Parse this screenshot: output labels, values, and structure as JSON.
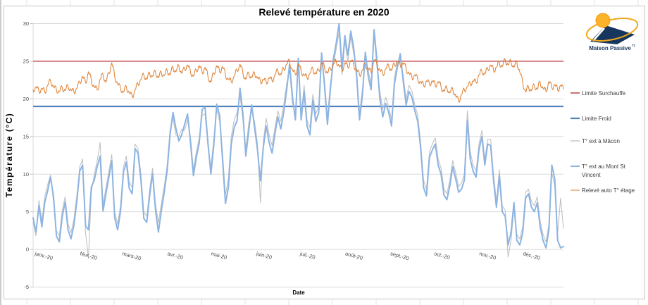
{
  "chart_data": {
    "type": "line",
    "title": "Relevé température en 2020",
    "xlabel": "Date",
    "ylabel": "Température  (°C)",
    "ylim": [
      -5,
      30
    ],
    "yticks": [
      30,
      25,
      20,
      15,
      10,
      5,
      0,
      -5
    ],
    "grid": "horizontal gridlines on, light gray",
    "legend_position": "right",
    "x_unit": "day of year 2020, daily records",
    "x_domain_days": [
      1,
      365
    ],
    "x_categories": [
      "janv.-20",
      "févr.-20",
      "mars-20",
      "avr.-20",
      "mai-20",
      "juin-20",
      "juil.-20",
      "août-20",
      "sept.-20",
      "oct.-20",
      "nov.-20",
      "déc.-20"
    ],
    "month_start_days": [
      1,
      32,
      61,
      92,
      122,
      153,
      183,
      214,
      245,
      275,
      306,
      336
    ],
    "reference_lines": [
      {
        "label": "Limite Surchauffe",
        "value": 25,
        "color": "#C0504D",
        "stroke_width": 1.4
      },
      {
        "label": "Limite Froid",
        "value": 19,
        "color": "#4F81BD",
        "stroke_width": 2.2
      }
    ],
    "series_sampling": {
      "start_day": 1,
      "step_days": 2
    },
    "series": [
      {
        "label": "T° ext à Mâcon",
        "color": "#BDBDBD",
        "stroke_width": 1,
        "values": [
          3.6,
          1.8,
          6.5,
          3.8,
          7.0,
          8.6,
          9.9,
          6.2,
          2.5,
          1.8,
          5.2,
          7.0,
          3.4,
          2.2,
          4.0,
          7.2,
          11.0,
          12.0,
          2.2,
          -1.2,
          7.6,
          10.0,
          11.8,
          14.2,
          6.0,
          8.2,
          10.4,
          12.6,
          5.0,
          3.4,
          5.8,
          11.0,
          12.4,
          9.0,
          8.2,
          14.0,
          13.4,
          10.0,
          5.0,
          4.4,
          8.0,
          10.8,
          6.0,
          3.6,
          6.0,
          8.4,
          11.2,
          16.0,
          17.4,
          15.2,
          15.0,
          16.0,
          15.8,
          17.2,
          15.0,
          10.6,
          13.0,
          14.8,
          17.8,
          18.0,
          13.6,
          11.0,
          14.6,
          18.6,
          17.0,
          13.0,
          7.2,
          9.4,
          15.0,
          17.2,
          18.2,
          20.4,
          17.2,
          13.4,
          16.8,
          18.4,
          17.0,
          14.0,
          6.2,
          14.4,
          17.4,
          15.2,
          13.8,
          16.2,
          18.4,
          17.0,
          19.2,
          22.0,
          23.8,
          19.4,
          18.0,
          24.6,
          18.0,
          21.8,
          17.2,
          16.2,
          20.6,
          18.0,
          19.0,
          25.2,
          22.6,
          17.6,
          22.0,
          24.4,
          26.6,
          28.8,
          23.2,
          27.6,
          25.0,
          28.2,
          26.0,
          24.0,
          18.2,
          21.2,
          25.4,
          23.8,
          22.0,
          28.4,
          24.2,
          21.0,
          18.6,
          20.2,
          19.0,
          17.2,
          22.8,
          25.0,
          25.2,
          23.2,
          20.0,
          21.8,
          21.0,
          19.2,
          17.8,
          14.2,
          9.2,
          8.0,
          13.0,
          14.0,
          14.8,
          12.0,
          10.8,
          8.0,
          7.4,
          9.2,
          11.8,
          10.2,
          8.4,
          8.8,
          10.0,
          18.4,
          13.0,
          11.2,
          10.4,
          14.0,
          15.8,
          12.0,
          14.6,
          14.6,
          10.0,
          6.4,
          10.6,
          5.8,
          5.2,
          -1.0,
          1.2,
          5.4,
          2.0,
          1.4,
          3.0,
          7.6,
          8.0,
          6.4,
          5.8,
          7.0,
          3.8,
          2.0,
          1.0,
          3.4,
          10.2,
          8.4,
          2.0,
          6.8,
          2.8
        ]
      },
      {
        "label": "T° ext au Mont St Vincent",
        "color": "#8DB4E2",
        "stroke_width": 2,
        "values": [
          4.2,
          2.3,
          5.8,
          3.0,
          6.2,
          7.8,
          9.6,
          7.0,
          1.8,
          1.0,
          4.4,
          6.3,
          2.6,
          1.4,
          3.2,
          6.4,
          10.4,
          11.2,
          3.1,
          2.6,
          8.3,
          9.2,
          11.0,
          12.4,
          5.1,
          7.4,
          9.6,
          11.8,
          4.2,
          2.6,
          5.0,
          10.3,
          11.6,
          8.1,
          7.4,
          13.4,
          12.8,
          9.2,
          4.1,
          3.6,
          7.2,
          10.1,
          5.2,
          2.3,
          5.1,
          7.6,
          10.4,
          15.3,
          18.2,
          16.1,
          14.4,
          15.2,
          16.6,
          18.0,
          14.3,
          9.8,
          12.2,
          14.1,
          18.6,
          18.9,
          14.2,
          10.0,
          13.8,
          19.3,
          17.8,
          12.0,
          6.1,
          8.2,
          14.0,
          16.2,
          17.1,
          21.4,
          18.0,
          12.4,
          15.8,
          19.2,
          16.2,
          13.2,
          9.1,
          13.6,
          16.4,
          14.2,
          12.8,
          15.4,
          17.6,
          16.0,
          18.2,
          21.2,
          24.6,
          20.3,
          17.2,
          25.4,
          17.2,
          21.0,
          16.4,
          15.2,
          19.8,
          17.0,
          18.2,
          26.1,
          21.8,
          16.6,
          21.2,
          25.2,
          27.4,
          30.0,
          24.0,
          28.4,
          25.8,
          29.0,
          26.8,
          23.2,
          17.2,
          20.4,
          26.2,
          23.0,
          21.2,
          29.2,
          25.0,
          20.0,
          17.6,
          19.4,
          18.2,
          16.4,
          22.0,
          24.2,
          26.0,
          22.4,
          19.2,
          21.0,
          20.2,
          18.4,
          17.0,
          13.4,
          8.2,
          7.1,
          12.2,
          13.2,
          14.0,
          11.2,
          10.0,
          7.2,
          6.6,
          8.4,
          11.0,
          9.4,
          7.6,
          8.0,
          9.2,
          17.2,
          12.0,
          10.4,
          9.6,
          13.2,
          15.0,
          11.2,
          14.0,
          13.8,
          9.2,
          5.6,
          9.8,
          5.0,
          4.4,
          0.6,
          2.2,
          6.2,
          1.2,
          0.6,
          2.2,
          6.8,
          7.4,
          5.6,
          5.0,
          6.2,
          3.0,
          1.2,
          0.2,
          2.6,
          11.2,
          9.4,
          1.2,
          0.2,
          0.4
        ]
      },
      {
        "label": "Relevé auto T° étage",
        "color": "#DD7E2F",
        "stroke_width": 1,
        "daily_oscillation_amplitude": 0.35,
        "values": [
          21.2,
          21.6,
          21.0,
          21.4,
          20.9,
          21.8,
          22.4,
          21.6,
          21.2,
          21.0,
          21.5,
          21.1,
          21.7,
          21.2,
          20.9,
          21.4,
          22.2,
          23.0,
          22.1,
          23.6,
          22.4,
          21.6,
          21.2,
          22.6,
          23.2,
          22.2,
          23.4,
          24.8,
          23.0,
          22.0,
          21.4,
          20.9,
          21.6,
          20.8,
          20.3,
          21.2,
          22.0,
          22.6,
          23.2,
          22.6,
          23.4,
          23.0,
          23.6,
          22.8,
          23.5,
          23.1,
          23.8,
          23.2,
          24.2,
          23.6,
          24.4,
          23.4,
          24.0,
          24.5,
          23.6,
          23.0,
          23.8,
          24.4,
          23.5,
          24.2,
          23.0,
          22.2,
          23.4,
          24.4,
          23.6,
          24.3,
          23.2,
          22.6,
          22.3,
          23.0,
          23.8,
          24.6,
          23.4,
          22.6,
          23.4,
          22.8,
          23.4,
          22.8,
          22.3,
          22.6,
          22.2,
          22.8,
          22.4,
          23.2,
          23.8,
          23.2,
          24.0,
          24.6,
          25.0,
          23.8,
          23.2,
          24.6,
          23.6,
          23.2,
          22.8,
          23.4,
          24.0,
          23.3,
          23.8,
          24.8,
          24.2,
          23.4,
          24.0,
          24.6,
          25.0,
          24.4,
          23.8,
          24.8,
          24.2,
          25.1,
          24.6,
          23.8,
          23.2,
          23.8,
          24.6,
          24.0,
          23.5,
          25.2,
          24.6,
          23.8,
          23.3,
          24.0,
          24.4,
          23.8,
          24.6,
          25.0,
          24.4,
          24.8,
          24.0,
          23.4,
          22.8,
          23.2,
          22.6,
          22.2,
          21.8,
          22.4,
          22.0,
          22.4,
          21.8,
          22.3,
          21.6,
          21.0,
          21.5,
          20.8,
          21.3,
          20.4,
          19.7,
          20.6,
          21.2,
          21.6,
          22.0,
          22.4,
          22.2,
          23.2,
          23.7,
          23.3,
          24.0,
          24.5,
          23.8,
          24.2,
          24.8,
          24.3,
          25.2,
          24.5,
          25.0,
          24.2,
          24.9,
          23.6,
          22.2,
          20.9,
          21.6,
          21.1,
          21.8,
          21.3,
          22.2,
          21.4,
          21.0,
          22.3,
          21.5,
          21.9,
          21.2,
          21.8,
          21.3
        ]
      }
    ]
  },
  "legend": {
    "items": [
      {
        "label": "Limite Surchauffe",
        "lines": [
          "Limite Surchauffe"
        ],
        "color": "#C0504D",
        "stroke_width": 1.6
      },
      {
        "label": "Limite Froid",
        "lines": [
          "Limite Froid"
        ],
        "color": "#4F81BD",
        "stroke_width": 2.2
      },
      {
        "label": "T° ext à Mâcon",
        "lines": [
          "T° ext à Mâcon"
        ],
        "color": "#ABABAB",
        "stroke_width": 1
      },
      {
        "label": "T° ext au Mont St Vincent",
        "lines": [
          "T° ext au Mont St",
          "Vincent"
        ],
        "color": "#8DB4E2",
        "stroke_width": 2
      },
      {
        "label": "Relevé auto T° étage",
        "lines": [
          "Relevé auto T° étage"
        ],
        "color": "#DD7E2F",
        "stroke_width": 1
      }
    ]
  },
  "logo": {
    "name": "Maison Passive",
    "superscript": "71",
    "text_color": "#17365D",
    "roof_color": "#17365D",
    "sun_color": "#FBB429",
    "swoosh_color": "#F2A71B"
  },
  "colors": {
    "background": "#FFFFFF",
    "chart_border": "#C6C6C6",
    "gridline": "#D9D9D9",
    "axis_text": "#4A4A4A",
    "title_text": "#000000"
  }
}
